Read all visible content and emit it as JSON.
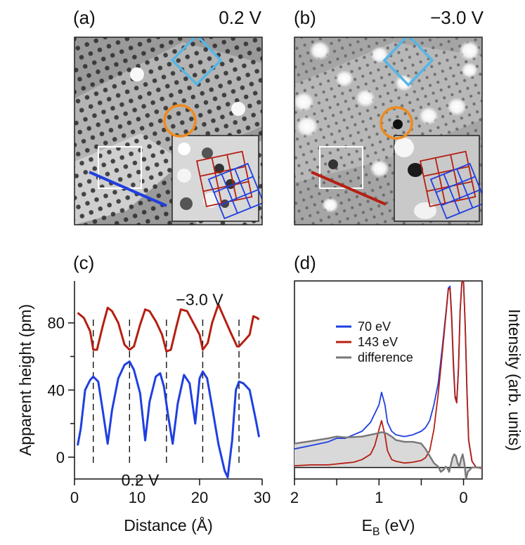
{
  "panels": {
    "a": {
      "label": "(a)",
      "voltage": "0.2 V"
    },
    "b": {
      "label": "(b)",
      "voltage": "−3.0 V"
    },
    "c": {
      "label": "(c)"
    },
    "d": {
      "label": "(d)"
    }
  },
  "colors": {
    "blue": "#1f3fe0",
    "red": "#b51f12",
    "orange": "#ef8a1d",
    "cyan": "#55b6e6",
    "gray": "#777777",
    "fill_gray": "#d9d9d9"
  },
  "chart_data": [
    {
      "type": "line",
      "panel": "c",
      "xlabel": "Distance (Å)",
      "ylabel": "Apparent height (pm)",
      "xlim": [
        0,
        30
      ],
      "ylim": [
        -13,
        105
      ],
      "xticks": [
        0,
        10,
        20,
        30
      ],
      "yticks": [
        0,
        40,
        80
      ],
      "minor_yticks": [
        20,
        60
      ],
      "dashed_lines_x": [
        3.0,
        8.8,
        14.7,
        20.5,
        26.3
      ],
      "annotations": [
        "−3.0 V",
        "0.2 V"
      ],
      "series": [
        {
          "name": "−3.0 V",
          "color": "#b51f12",
          "x": [
            0.5,
            1.5,
            2.5,
            3.0,
            3.6,
            4.5,
            5.3,
            6.0,
            7.0,
            8.0,
            8.8,
            9.5,
            10.5,
            11.3,
            12.0,
            13.0,
            14.0,
            14.7,
            15.4,
            16.3,
            17.0,
            18.0,
            19.0,
            20.0,
            20.5,
            21.3,
            22.0,
            23.0,
            23.7,
            25.0,
            26.0,
            26.3,
            27.3,
            28.0,
            28.6,
            29.2,
            29.5
          ],
          "y": [
            86,
            83,
            75,
            64,
            64,
            78,
            89,
            87,
            80,
            67,
            64,
            66,
            79,
            88,
            87,
            81,
            73,
            63,
            64,
            78,
            88,
            87,
            80,
            73,
            64,
            68,
            80,
            91,
            85,
            74,
            66,
            66,
            70,
            73,
            84,
            83,
            82
          ]
        },
        {
          "name": "0.2 V",
          "color": "#1f3fe0",
          "x": [
            0.5,
            1.0,
            1.7,
            2.5,
            3.0,
            3.8,
            4.5,
            5.3,
            6.0,
            7.0,
            8.0,
            8.8,
            9.5,
            10.5,
            11.3,
            12.0,
            13.0,
            13.7,
            14.3,
            15.0,
            15.7,
            16.5,
            17.5,
            18.4,
            19.3,
            20.0,
            20.5,
            21.2,
            22.0,
            23.0,
            24.0,
            24.5,
            25.2,
            25.8,
            26.3,
            27.0,
            28.0,
            29.0,
            29.5
          ],
          "y": [
            7,
            17,
            40,
            46,
            48,
            45,
            28,
            8,
            28,
            47,
            55,
            57,
            52,
            38,
            10,
            33,
            48,
            50,
            42,
            24,
            8,
            32,
            49,
            44,
            20,
            47,
            51,
            47,
            30,
            8,
            -8,
            -12,
            10,
            40,
            45,
            44,
            40,
            22,
            12
          ]
        }
      ]
    },
    {
      "type": "line",
      "panel": "d",
      "xlabel": "E_B (eV)",
      "ylabel": "Intensity (arb. units)",
      "xlim": [
        2.0,
        -0.22
      ],
      "ylim": [
        -0.12,
        1.0
      ],
      "xticks": [
        2,
        1,
        0
      ],
      "minor_xticks": [
        1.5,
        0.5
      ],
      "legend": {
        "placement": "upper-center",
        "entries": [
          {
            "name": "70 eV",
            "color": "#1f3fe0"
          },
          {
            "name": "143 eV",
            "color": "#b51f12"
          },
          {
            "name": "difference",
            "color": "#777777"
          }
        ]
      },
      "series": [
        {
          "name": "70 eV",
          "color": "#1f3fe0",
          "x": [
            2.0,
            1.8,
            1.6,
            1.5,
            1.4,
            1.2,
            1.1,
            1.0,
            0.97,
            0.93,
            0.9,
            0.85,
            0.8,
            0.7,
            0.6,
            0.5,
            0.45,
            0.4,
            0.35,
            0.3,
            0.25,
            0.2,
            0.18,
            0.16,
            0.14,
            0.12,
            0.1,
            0.08,
            0.06,
            0.04,
            0.02,
            0.0,
            -0.02,
            -0.04,
            -0.06,
            -0.1,
            -0.15,
            -0.22
          ],
          "y": [
            0.05,
            0.07,
            0.09,
            0.11,
            0.11,
            0.15,
            0.2,
            0.3,
            0.37,
            0.3,
            0.2,
            0.15,
            0.13,
            0.12,
            0.13,
            0.15,
            0.17,
            0.21,
            0.3,
            0.42,
            0.63,
            0.86,
            0.96,
            0.97,
            0.8,
            0.55,
            0.35,
            0.32,
            0.5,
            0.83,
            0.99,
            1.0,
            0.75,
            0.38,
            0.1,
            -0.02,
            -0.055,
            -0.06
          ]
        },
        {
          "name": "143 eV",
          "color": "#b51f12",
          "x": [
            2.0,
            1.8,
            1.6,
            1.5,
            1.4,
            1.3,
            1.2,
            1.1,
            1.05,
            1.0,
            0.97,
            0.93,
            0.9,
            0.85,
            0.8,
            0.7,
            0.6,
            0.5,
            0.45,
            0.4,
            0.35,
            0.3,
            0.25,
            0.2,
            0.18,
            0.16,
            0.14,
            0.12,
            0.1,
            0.08,
            0.06,
            0.04,
            0.02,
            0.0,
            -0.02,
            -0.04,
            -0.06,
            -0.1,
            -0.15,
            -0.22
          ],
          "y": [
            -0.045,
            -0.04,
            -0.04,
            -0.035,
            -0.03,
            -0.025,
            -0.01,
            0.02,
            0.07,
            0.16,
            0.21,
            0.13,
            0.04,
            -0.01,
            -0.02,
            -0.03,
            -0.025,
            -0.015,
            0.0,
            0.04,
            0.16,
            0.36,
            0.6,
            0.85,
            0.95,
            0.96,
            0.78,
            0.52,
            0.34,
            0.31,
            0.5,
            0.83,
            0.99,
            1.0,
            0.75,
            0.38,
            0.1,
            -0.02,
            -0.055,
            -0.06
          ]
        },
        {
          "name": "difference",
          "color": "#777777",
          "filled": true,
          "x": [
            2.0,
            1.8,
            1.6,
            1.5,
            1.4,
            1.2,
            1.1,
            1.0,
            0.97,
            0.93,
            0.9,
            0.85,
            0.8,
            0.7,
            0.6,
            0.5,
            0.45,
            0.4,
            0.35,
            0.3,
            0.27,
            0.24,
            0.21,
            0.19,
            0.17,
            0.15,
            0.13,
            0.11,
            0.09,
            0.07,
            0.05,
            0.03,
            0.01,
            -0.01,
            -0.03,
            -0.05,
            -0.1,
            -0.22
          ],
          "y": [
            0.08,
            0.095,
            0.11,
            0.12,
            0.115,
            0.12,
            0.13,
            0.14,
            0.145,
            0.14,
            0.135,
            0.12,
            0.1,
            0.09,
            0.09,
            0.08,
            0.05,
            0.01,
            -0.03,
            -0.05,
            -0.08,
            -0.07,
            -0.05,
            -0.06,
            -0.08,
            -0.04,
            0.0,
            0.02,
            0.01,
            -0.03,
            -0.05,
            -0.01,
            0.02,
            -0.03,
            -0.12,
            -0.08,
            -0.055,
            -0.055
          ]
        }
      ]
    }
  ]
}
